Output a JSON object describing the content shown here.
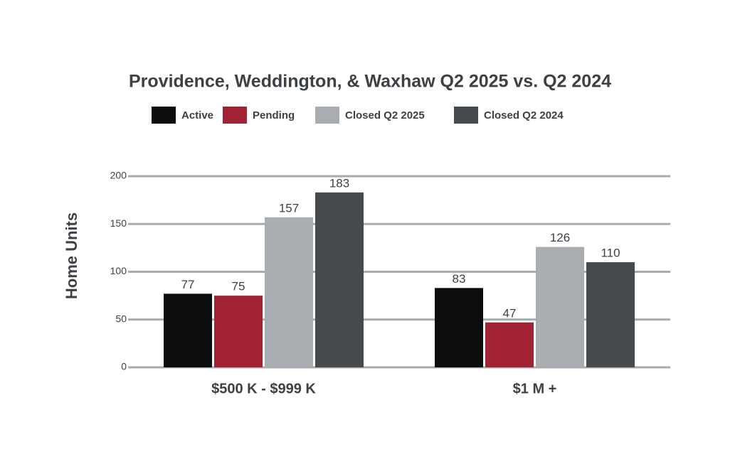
{
  "chart_data": {
    "type": "bar",
    "title": "Providence, Weddington, & Waxhaw Q2 2025 vs. Q2 2024",
    "y_label": "Home Units",
    "categories": [
      "$500 K - $999 K",
      "$1 M +"
    ],
    "series": [
      {
        "name": "Active",
        "color": "#0b0d0e",
        "values": [
          77,
          83
        ]
      },
      {
        "name": "Pending",
        "color": "#a12232",
        "values": [
          75,
          47
        ]
      },
      {
        "name": "Closed Q2 2025",
        "color": "#a9adb1",
        "values": [
          157,
          126
        ]
      },
      {
        "name": "Closed Q2 2024",
        "color": "#474a4d",
        "values": [
          183,
          110
        ]
      }
    ],
    "ylim": [
      0,
      200
    ],
    "yticks": [
      0,
      50,
      100,
      150,
      200
    ],
    "grid": true,
    "legend": "top"
  }
}
